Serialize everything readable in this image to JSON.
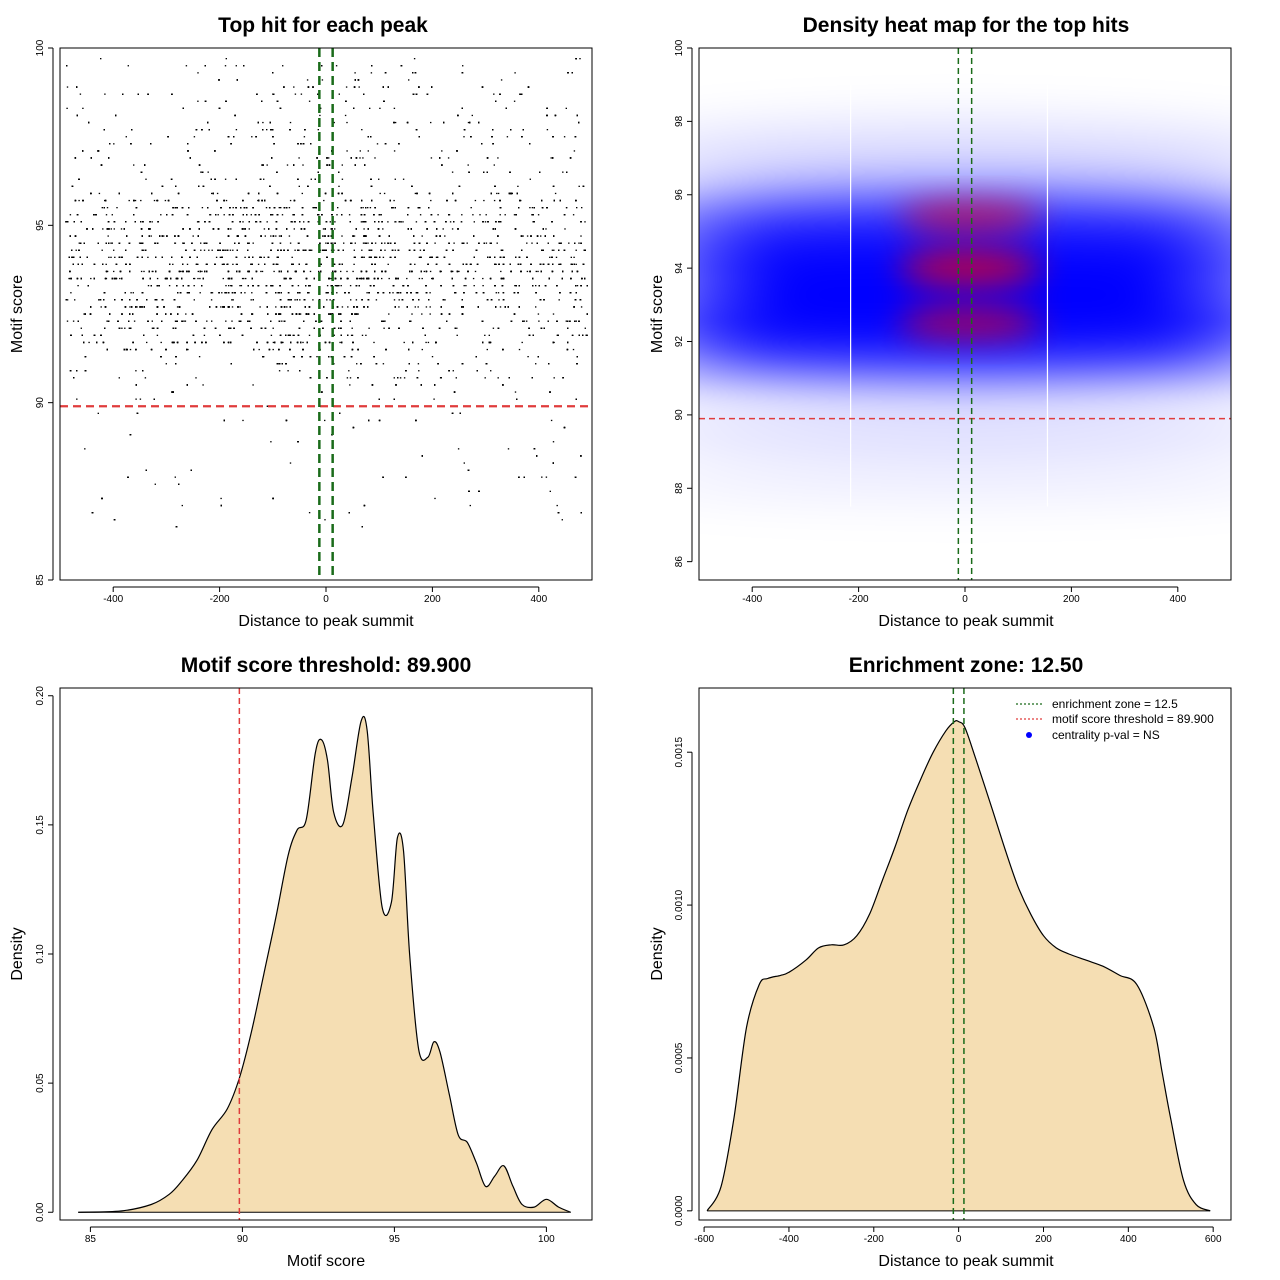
{
  "colors": {
    "threshold": "#e03c3c",
    "zone": "#1a6b1a",
    "fill": "#f5deb3",
    "dots": "#000000",
    "heat_low": "#ffffff",
    "heat_mid": "#0000ff",
    "heat_high": "#ff0000",
    "pval_marker": "#0000ff"
  },
  "chart_data": [
    {
      "id": "scatter",
      "type": "scatter",
      "title": "Top hit for each peak",
      "xlabel": "Distance to peak summit",
      "ylabel": "Motif score",
      "xlim": [
        -500,
        500
      ],
      "ylim": [
        85,
        100
      ],
      "xticks": [
        -400,
        -200,
        0,
        200,
        400
      ],
      "yticks": [
        85,
        90,
        95,
        100
      ],
      "threshold_y": 89.9,
      "zone_x": [
        -12.5,
        12.5
      ],
      "points_note": "",
      "density_centers": [
        92.5,
        94.0,
        95.4
      ],
      "approx_points": 9000
    },
    {
      "id": "heatmap",
      "type": "heatmap",
      "title": "Density heat map for the top hits",
      "xlabel": "Distance to peak summit",
      "ylabel": "Motif score",
      "xlim": [
        -500,
        500
      ],
      "ylim": [
        85.5,
        100
      ],
      "xticks": [
        -400,
        -200,
        0,
        200,
        400
      ],
      "yticks": [
        86,
        88,
        90,
        92,
        94,
        96,
        98,
        100
      ],
      "threshold_y": 89.9,
      "zone_x": [
        -12.5,
        12.5
      ],
      "white_lines_x": [
        -215,
        155
      ],
      "hotspots": [
        {
          "x": 0,
          "y": 95.4,
          "intensity": 0.75
        },
        {
          "x": 0,
          "y": 94.0,
          "intensity": 1.0
        },
        {
          "x": 0,
          "y": 92.5,
          "intensity": 0.8
        }
      ]
    },
    {
      "id": "score_density",
      "type": "area",
      "title": "Motif score threshold: 89.900",
      "xlabel": "Motif score",
      "ylabel": "Density",
      "xlim": [
        84,
        101.5
      ],
      "ylim": [
        -0.003,
        0.203
      ],
      "xticks": [
        85,
        90,
        95,
        100
      ],
      "yticks": [
        0.0,
        0.05,
        0.1,
        0.15,
        0.2
      ],
      "ytick_labels": [
        "0.00",
        "0.05",
        "0.10",
        "0.15",
        "0.20"
      ],
      "threshold_x": 89.9,
      "x": [
        84.6,
        86,
        87,
        87.6,
        88,
        88.5,
        89,
        89.5,
        89.9,
        90.3,
        90.7,
        91.1,
        91.5,
        91.8,
        92.1,
        92.4,
        92.6,
        92.8,
        93.0,
        93.3,
        93.6,
        93.9,
        94.1,
        94.3,
        94.6,
        94.9,
        95.1,
        95.3,
        95.5,
        95.8,
        96.1,
        96.3,
        96.5,
        96.8,
        97.1,
        97.4,
        97.7,
        98.0,
        98.3,
        98.6,
        98.9,
        99.2,
        99.6,
        100.0,
        100.4,
        100.8
      ],
      "y": [
        0.0,
        0.0005,
        0.003,
        0.007,
        0.012,
        0.02,
        0.032,
        0.04,
        0.052,
        0.07,
        0.092,
        0.114,
        0.138,
        0.148,
        0.152,
        0.178,
        0.183,
        0.175,
        0.155,
        0.15,
        0.168,
        0.19,
        0.187,
        0.155,
        0.118,
        0.12,
        0.145,
        0.14,
        0.1,
        0.063,
        0.06,
        0.066,
        0.062,
        0.046,
        0.03,
        0.027,
        0.019,
        0.01,
        0.014,
        0.018,
        0.01,
        0.003,
        0.002,
        0.005,
        0.002,
        0.0
      ]
    },
    {
      "id": "distance_density",
      "type": "area",
      "title": "Enrichment zone: 12.50",
      "xlabel": "Distance to peak summit",
      "ylabel": "Density",
      "xlim": [
        -612,
        642
      ],
      "ylim": [
        -3e-05,
        0.00171
      ],
      "xticks": [
        -600,
        -400,
        -200,
        0,
        200,
        400,
        600
      ],
      "yticks": [
        0.0,
        0.0005,
        0.001,
        0.0015
      ],
      "ytick_labels": [
        "0.0000",
        "0.0005",
        "0.0010",
        "0.0015"
      ],
      "zone_x": [
        -12.5,
        12.5
      ],
      "x": [
        -593,
        -560,
        -530,
        -500,
        -470,
        -450,
        -420,
        -400,
        -360,
        -330,
        -300,
        -270,
        -240,
        -210,
        -180,
        -150,
        -120,
        -90,
        -60,
        -30,
        -10,
        0,
        15,
        40,
        80,
        110,
        140,
        170,
        200,
        230,
        260,
        300,
        340,
        380,
        420,
        460,
        480,
        500,
        530,
        560,
        593
      ],
      "y": [
        0.0,
        8e-05,
        0.0003,
        0.0006,
        0.00074,
        0.00076,
        0.00077,
        0.00078,
        0.00082,
        0.00086,
        0.00087,
        0.00087,
        0.0009,
        0.00097,
        0.00108,
        0.00119,
        0.00131,
        0.00141,
        0.0015,
        0.00157,
        0.0016,
        0.0016,
        0.00158,
        0.00148,
        0.00131,
        0.00118,
        0.00106,
        0.00097,
        0.0009,
        0.00086,
        0.00084,
        0.00082,
        0.0008,
        0.00077,
        0.00074,
        0.0006,
        0.00045,
        0.0003,
        0.0001,
        2e-05,
        0.0
      ],
      "legend": {
        "position": "top-right",
        "items": [
          {
            "label": "enrichment zone = 12.5",
            "style": "dotted",
            "color": "#1a6b1a"
          },
          {
            "label": "motif score threshold = 89.900",
            "style": "dotted",
            "color": "#e03c3c"
          },
          {
            "label": "centrality p-val = NS",
            "style": "point",
            "color": "#0000ff"
          }
        ]
      }
    }
  ]
}
